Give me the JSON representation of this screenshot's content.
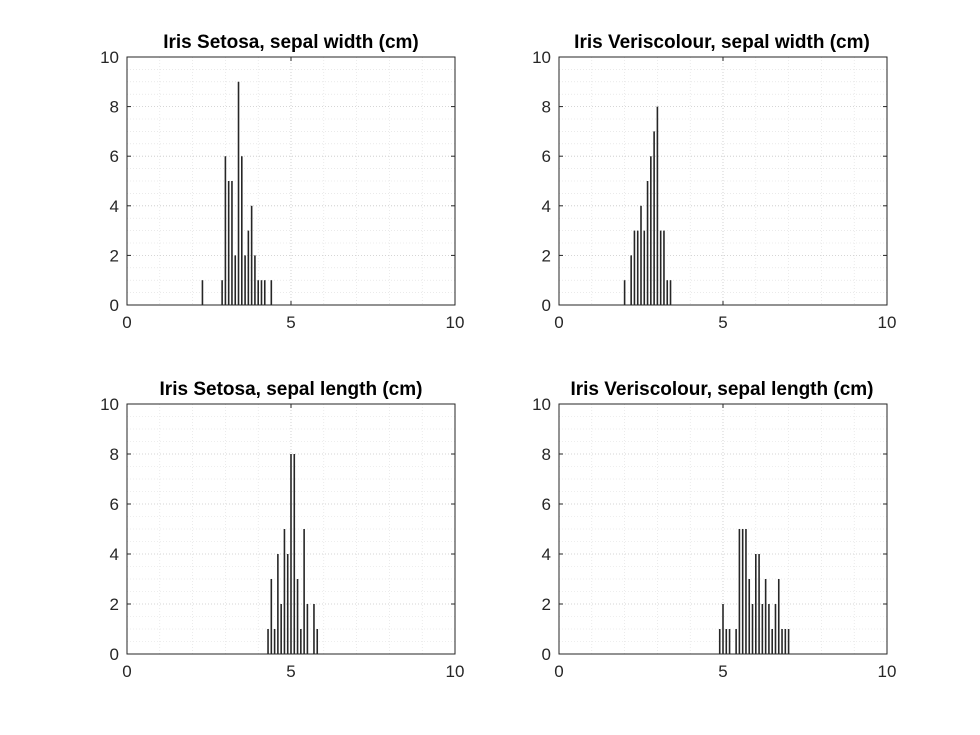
{
  "chart_data": [
    {
      "type": "bar",
      "title": "Iris Setosa, sepal width (cm)",
      "xlim": [
        0,
        10
      ],
      "ylim": [
        0,
        10
      ],
      "xticks": [
        "0",
        "5",
        "10"
      ],
      "yticks": [
        "0",
        "2",
        "4",
        "6",
        "8",
        "10"
      ],
      "grid": true,
      "minor_grid": true,
      "x": [
        2.3,
        2.9,
        3.0,
        3.1,
        3.2,
        3.3,
        3.4,
        3.5,
        3.6,
        3.7,
        3.8,
        3.9,
        4.0,
        4.1,
        4.2,
        4.4
      ],
      "values": [
        1,
        1,
        6,
        5,
        5,
        2,
        9,
        6,
        2,
        3,
        4,
        2,
        1,
        1,
        1,
        1
      ]
    },
    {
      "type": "bar",
      "title": "Iris Veriscolour, sepal width (cm)",
      "xlim": [
        0,
        10
      ],
      "ylim": [
        0,
        10
      ],
      "xticks": [
        "0",
        "5",
        "10"
      ],
      "yticks": [
        "0",
        "2",
        "4",
        "6",
        "8",
        "10"
      ],
      "grid": true,
      "minor_grid": true,
      "x": [
        2.0,
        2.2,
        2.3,
        2.4,
        2.5,
        2.6,
        2.7,
        2.8,
        2.9,
        3.0,
        3.1,
        3.2,
        3.3,
        3.4
      ],
      "values": [
        1,
        2,
        3,
        3,
        4,
        3,
        5,
        6,
        7,
        8,
        3,
        3,
        1,
        1
      ]
    },
    {
      "type": "bar",
      "title": "Iris Setosa, sepal length (cm)",
      "xlim": [
        0,
        10
      ],
      "ylim": [
        0,
        10
      ],
      "xticks": [
        "0",
        "5",
        "10"
      ],
      "yticks": [
        "0",
        "2",
        "4",
        "6",
        "8",
        "10"
      ],
      "grid": true,
      "minor_grid": true,
      "x": [
        4.3,
        4.4,
        4.5,
        4.6,
        4.7,
        4.8,
        4.9,
        5.0,
        5.1,
        5.2,
        5.3,
        5.4,
        5.5,
        5.7,
        5.8
      ],
      "values": [
        1,
        3,
        1,
        4,
        2,
        5,
        4,
        8,
        8,
        3,
        1,
        5,
        2,
        2,
        1
      ]
    },
    {
      "type": "bar",
      "title": "Iris Veriscolour, sepal length (cm)",
      "xlim": [
        0,
        10
      ],
      "ylim": [
        0,
        10
      ],
      "xticks": [
        "0",
        "5",
        "10"
      ],
      "yticks": [
        "0",
        "2",
        "4",
        "6",
        "8",
        "10"
      ],
      "grid": true,
      "minor_grid": true,
      "x": [
        4.9,
        5.0,
        5.1,
        5.2,
        5.4,
        5.5,
        5.6,
        5.7,
        5.8,
        5.9,
        6.0,
        6.1,
        6.2,
        6.3,
        6.4,
        6.5,
        6.6,
        6.7,
        6.8,
        6.9,
        7.0
      ],
      "values": [
        1,
        2,
        1,
        1,
        1,
        5,
        5,
        5,
        3,
        2,
        4,
        4,
        2,
        3,
        2,
        1,
        2,
        3,
        1,
        1,
        1
      ]
    }
  ]
}
